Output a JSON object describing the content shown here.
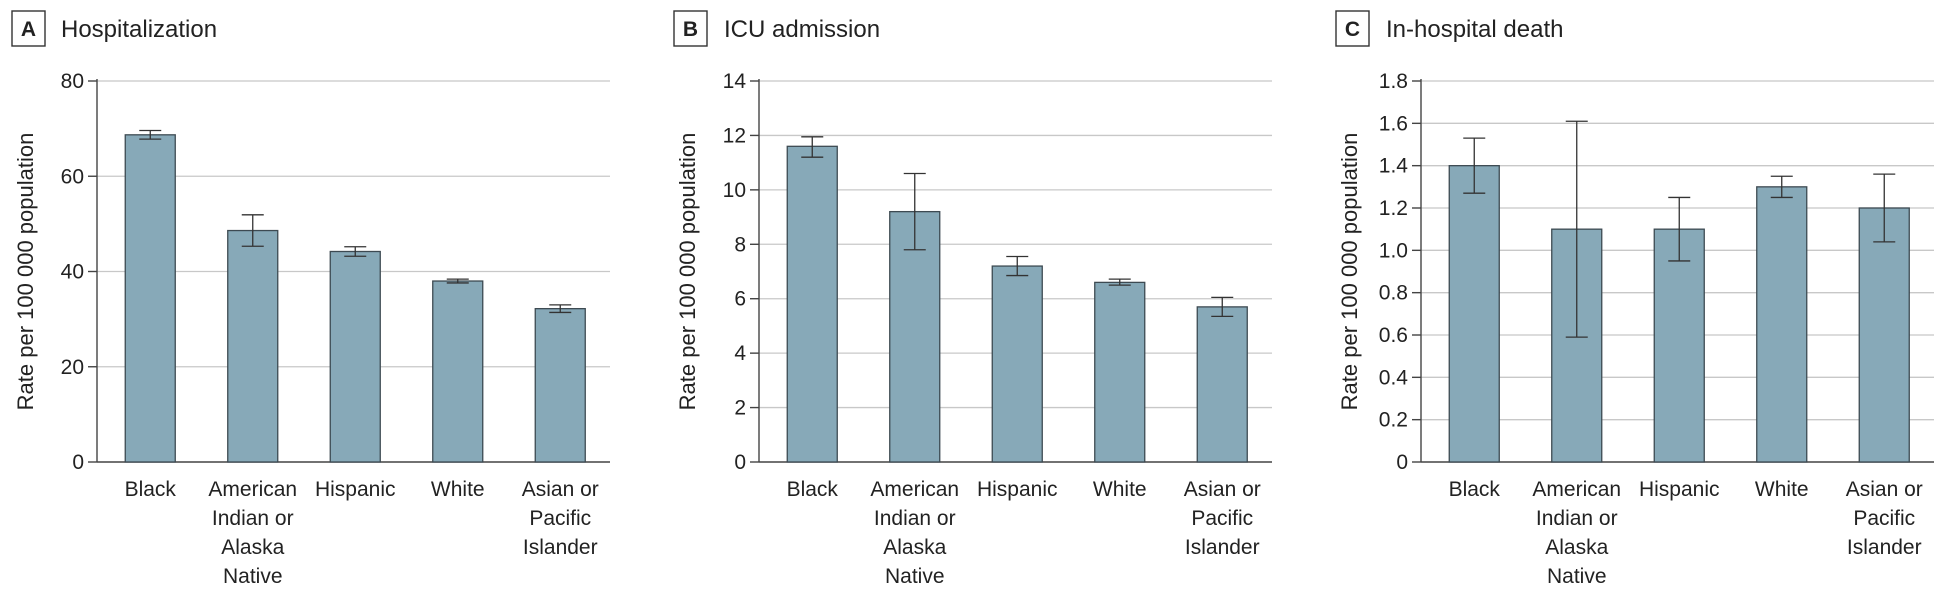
{
  "colors": {
    "bar_fill": "#87a9b8",
    "bar_stroke": "#3d4a52",
    "grid": "#c8c8c8",
    "axis": "#444444",
    "errorbar": "#333333",
    "text": "#222222"
  },
  "chart_data": [
    {
      "type": "bar",
      "panel_letter": "A",
      "title": "Hospitalization",
      "ylabel": "Rate per 100 000 population",
      "xlabel": "",
      "ylim": [
        0,
        80
      ],
      "yticks": [
        "0",
        "20",
        "40",
        "60",
        "80"
      ],
      "grid": true,
      "categories": [
        [
          "Black"
        ],
        [
          "American",
          "Indian or",
          "Alaska",
          "Native"
        ],
        [
          "Hispanic"
        ],
        [
          "White"
        ],
        [
          "Asian or",
          "Pacific",
          "Islander"
        ]
      ],
      "values": [
        68.7,
        48.6,
        44.2,
        38.0,
        32.2
      ],
      "ci_low": [
        67.8,
        45.3,
        43.2,
        37.6,
        31.4
      ],
      "ci_high": [
        69.6,
        51.9,
        45.2,
        38.4,
        33.0
      ]
    },
    {
      "type": "bar",
      "panel_letter": "B",
      "title": "ICU admission",
      "ylabel": "Rate per 100 000 population",
      "xlabel": "",
      "ylim": [
        0,
        14
      ],
      "yticks": [
        "0",
        "2",
        "4",
        "6",
        "8",
        "10",
        "12",
        "14"
      ],
      "grid": true,
      "categories": [
        [
          "Black"
        ],
        [
          "American",
          "Indian or",
          "Alaska",
          "Native"
        ],
        [
          "Hispanic"
        ],
        [
          "White"
        ],
        [
          "Asian or",
          "Pacific",
          "Islander"
        ]
      ],
      "values": [
        11.6,
        9.2,
        7.2,
        6.6,
        5.7
      ],
      "ci_low": [
        11.2,
        7.8,
        6.85,
        6.5,
        5.35
      ],
      "ci_high": [
        11.95,
        10.6,
        7.55,
        6.72,
        6.05
      ]
    },
    {
      "type": "bar",
      "panel_letter": "C",
      "title": "In-hospital death",
      "ylabel": "Rate per 100 000 population",
      "xlabel": "",
      "ylim": [
        0,
        1.8
      ],
      "yticks": [
        "0",
        "0.2",
        "0.4",
        "0.6",
        "0.8",
        "1.0",
        "1.2",
        "1.4",
        "1.6",
        "1.8"
      ],
      "grid": true,
      "categories": [
        [
          "Black"
        ],
        [
          "American",
          "Indian or",
          "Alaska",
          "Native"
        ],
        [
          "Hispanic"
        ],
        [
          "White"
        ],
        [
          "Asian or",
          "Pacific",
          "Islander"
        ]
      ],
      "values": [
        1.4,
        1.1,
        1.1,
        1.3,
        1.2
      ],
      "ci_low": [
        1.27,
        0.59,
        0.95,
        1.25,
        1.04
      ],
      "ci_high": [
        1.53,
        1.61,
        1.25,
        1.35,
        1.36
      ]
    }
  ]
}
